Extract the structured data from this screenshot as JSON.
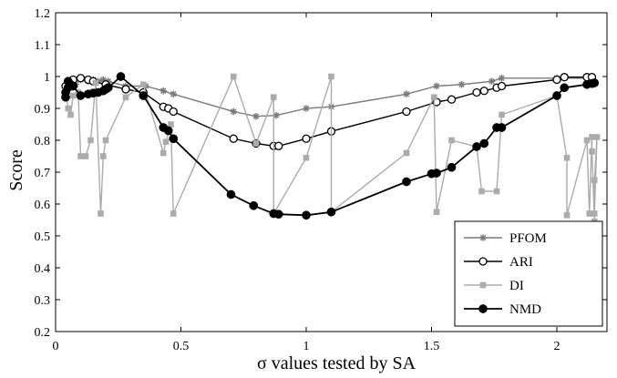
{
  "chart_data": {
    "type": "line",
    "title": "",
    "xlabel": "σ values tested by SA",
    "ylabel": "Score",
    "xlim": [
      0,
      2.2
    ],
    "ylim": [
      0.2,
      1.2
    ],
    "xticks": [
      "0",
      "0.5",
      "1",
      "1.5",
      "2"
    ],
    "xtick_values": [
      0,
      0.5,
      1,
      1.5,
      2
    ],
    "yticks": [
      "0.2",
      "0.3",
      "0.4",
      "0.5",
      "0.6",
      "0.7",
      "0.8",
      "0.9",
      "1",
      "1.1",
      "1.2"
    ],
    "ytick_values": [
      0.2,
      0.3,
      0.4,
      0.5,
      0.6,
      0.7,
      0.8,
      0.9,
      1.0,
      1.1,
      1.2
    ],
    "grid": false,
    "legend_position": "bottom-right",
    "series": [
      {
        "name": "PFOM",
        "marker": "star",
        "color": "#7a7a7a",
        "points": [
          [
            0.04,
            0.97
          ],
          [
            0.05,
            0.985
          ],
          [
            0.06,
            0.99
          ],
          [
            0.07,
            0.985
          ],
          [
            0.08,
            0.975
          ],
          [
            0.1,
            0.99
          ],
          [
            0.13,
            0.985
          ],
          [
            0.15,
            0.99
          ],
          [
            0.17,
            0.985
          ],
          [
            0.19,
            0.99
          ],
          [
            0.21,
            0.985
          ],
          [
            0.28,
            0.97
          ],
          [
            0.36,
            0.97
          ],
          [
            0.43,
            0.955
          ],
          [
            0.47,
            0.945
          ],
          [
            0.71,
            0.89
          ],
          [
            0.8,
            0.875
          ],
          [
            0.88,
            0.878
          ],
          [
            1.0,
            0.9
          ],
          [
            1.1,
            0.905
          ],
          [
            1.4,
            0.945
          ],
          [
            1.52,
            0.97
          ],
          [
            1.62,
            0.975
          ],
          [
            1.74,
            0.985
          ],
          [
            1.78,
            0.995
          ],
          [
            2.0,
            0.995
          ],
          [
            2.14,
            0.995
          ]
        ]
      },
      {
        "name": "ARI",
        "marker": "open-circle",
        "color": "#000000",
        "points": [
          [
            0.04,
            0.97
          ],
          [
            0.06,
            0.98
          ],
          [
            0.07,
            0.99
          ],
          [
            0.1,
            0.995
          ],
          [
            0.13,
            0.99
          ],
          [
            0.15,
            0.985
          ],
          [
            0.2,
            0.975
          ],
          [
            0.28,
            0.96
          ],
          [
            0.35,
            0.95
          ],
          [
            0.43,
            0.905
          ],
          [
            0.45,
            0.9
          ],
          [
            0.47,
            0.89
          ],
          [
            0.71,
            0.805
          ],
          [
            0.8,
            0.79
          ],
          [
            0.87,
            0.782
          ],
          [
            0.89,
            0.782
          ],
          [
            1.0,
            0.805
          ],
          [
            1.1,
            0.828
          ],
          [
            1.4,
            0.89
          ],
          [
            1.52,
            0.92
          ],
          [
            1.58,
            0.928
          ],
          [
            1.68,
            0.95
          ],
          [
            1.71,
            0.955
          ],
          [
            1.76,
            0.965
          ],
          [
            1.78,
            0.97
          ],
          [
            2.0,
            0.99
          ],
          [
            2.03,
            0.998
          ],
          [
            2.12,
            0.998
          ],
          [
            2.14,
            0.998
          ]
        ]
      },
      {
        "name": "DI",
        "marker": "square",
        "color": "#ababab",
        "points": [
          [
            0.04,
            0.95
          ],
          [
            0.05,
            0.9
          ],
          [
            0.06,
            0.88
          ],
          [
            0.07,
            0.94
          ],
          [
            0.09,
            0.95
          ],
          [
            0.1,
            0.75
          ],
          [
            0.12,
            0.75
          ],
          [
            0.14,
            0.8
          ],
          [
            0.16,
            0.98
          ],
          [
            0.18,
            0.57
          ],
          [
            0.19,
            0.75
          ],
          [
            0.2,
            0.8
          ],
          [
            0.28,
            0.935
          ],
          [
            0.35,
            0.975
          ],
          [
            0.43,
            0.76
          ],
          [
            0.44,
            0.795
          ],
          [
            0.46,
            0.85
          ],
          [
            0.47,
            0.57
          ],
          [
            0.71,
            1.0
          ],
          [
            0.8,
            0.79
          ],
          [
            0.87,
            0.935
          ],
          [
            0.87,
            0.57
          ],
          [
            1.0,
            0.745
          ],
          [
            1.1,
            1.0
          ],
          [
            1.1,
            0.575
          ],
          [
            1.4,
            0.76
          ],
          [
            1.51,
            0.935
          ],
          [
            1.52,
            0.575
          ],
          [
            1.58,
            0.8
          ],
          [
            1.68,
            0.78
          ],
          [
            1.7,
            0.64
          ],
          [
            1.76,
            0.64
          ],
          [
            1.78,
            0.88
          ],
          [
            2.0,
            0.94
          ],
          [
            2.04,
            0.745
          ],
          [
            2.04,
            0.565
          ],
          [
            2.12,
            0.8
          ],
          [
            2.13,
            0.57
          ],
          [
            2.14,
            0.81
          ],
          [
            2.14,
            0.765
          ],
          [
            2.15,
            0.545
          ],
          [
            2.15,
            0.675
          ],
          [
            2.16,
            0.81
          ],
          [
            2.15,
            0.57
          ]
        ]
      },
      {
        "name": "NMD",
        "marker": "filled-circle",
        "color": "#000000",
        "points": [
          [
            0.04,
            0.935
          ],
          [
            0.04,
            0.95
          ],
          [
            0.05,
            0.965
          ],
          [
            0.05,
            0.985
          ],
          [
            0.06,
            0.975
          ],
          [
            0.07,
            0.97
          ],
          [
            0.1,
            0.94
          ],
          [
            0.13,
            0.945
          ],
          [
            0.15,
            0.948
          ],
          [
            0.17,
            0.95
          ],
          [
            0.19,
            0.955
          ],
          [
            0.2,
            0.96
          ],
          [
            0.21,
            0.965
          ],
          [
            0.26,
            1.0
          ],
          [
            0.35,
            0.94
          ],
          [
            0.43,
            0.84
          ],
          [
            0.45,
            0.83
          ],
          [
            0.47,
            0.805
          ],
          [
            0.7,
            0.63
          ],
          [
            0.79,
            0.595
          ],
          [
            0.87,
            0.57
          ],
          [
            0.89,
            0.568
          ],
          [
            1.0,
            0.565
          ],
          [
            1.1,
            0.575
          ],
          [
            1.4,
            0.67
          ],
          [
            1.5,
            0.695
          ],
          [
            1.52,
            0.697
          ],
          [
            1.58,
            0.715
          ],
          [
            1.68,
            0.78
          ],
          [
            1.71,
            0.79
          ],
          [
            1.76,
            0.84
          ],
          [
            1.78,
            0.84
          ],
          [
            2.0,
            0.94
          ],
          [
            2.03,
            0.965
          ],
          [
            2.12,
            0.975
          ],
          [
            2.14,
            0.978
          ],
          [
            2.15,
            0.98
          ]
        ]
      }
    ]
  }
}
